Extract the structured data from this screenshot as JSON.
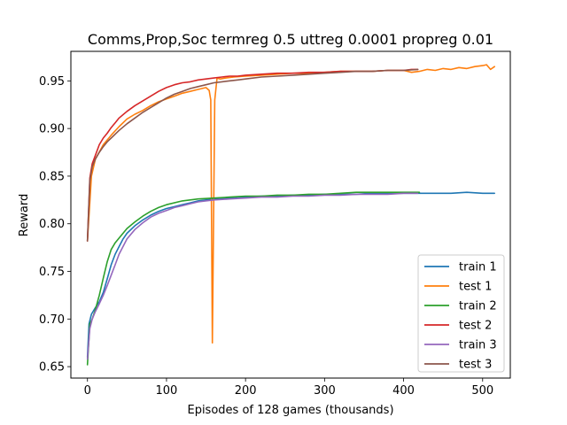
{
  "chart_data": {
    "type": "line",
    "title": "Comms,Prop,Soc termreg 0.5 uttreg 0.0001 propreg 0.01",
    "xlabel": "Episodes of 128 games (thousands)",
    "ylabel": "Reward",
    "xlim": [
      -21,
      535
    ],
    "ylim": [
      0.638,
      0.981
    ],
    "xticks": [
      0,
      100,
      200,
      300,
      400,
      500
    ],
    "yticks": [
      0.65,
      0.7,
      0.75,
      0.8,
      0.85,
      0.9,
      0.95
    ],
    "ytick_labels": [
      "0.65",
      "0.70",
      "0.75",
      "0.80",
      "0.85",
      "0.90",
      "0.95"
    ],
    "grid": false,
    "legend_position": "lower-right",
    "series": [
      {
        "name": "train 1",
        "color": "#1f77b4",
        "x": [
          0,
          2,
          5,
          10,
          15,
          20,
          25,
          30,
          35,
          40,
          45,
          50,
          60,
          70,
          80,
          90,
          100,
          110,
          120,
          130,
          140,
          150,
          160,
          170,
          180,
          190,
          200,
          220,
          240,
          260,
          280,
          300,
          320,
          340,
          360,
          380,
          400,
          420,
          440,
          460,
          480,
          500,
          515
        ],
        "y": [
          0.66,
          0.695,
          0.705,
          0.712,
          0.718,
          0.728,
          0.742,
          0.757,
          0.768,
          0.776,
          0.784,
          0.79,
          0.798,
          0.804,
          0.809,
          0.813,
          0.816,
          0.818,
          0.82,
          0.822,
          0.824,
          0.825,
          0.826,
          0.827,
          0.827,
          0.828,
          0.828,
          0.829,
          0.829,
          0.83,
          0.83,
          0.831,
          0.831,
          0.831,
          0.832,
          0.832,
          0.832,
          0.832,
          0.832,
          0.832,
          0.833,
          0.832,
          0.832
        ]
      },
      {
        "name": "test 1",
        "color": "#ff7f0e",
        "x": [
          0,
          5,
          10,
          20,
          30,
          40,
          50,
          60,
          70,
          80,
          90,
          100,
          110,
          120,
          130,
          140,
          150,
          154,
          156,
          158,
          161,
          164,
          168,
          175,
          185,
          200,
          220,
          240,
          260,
          280,
          300,
          320,
          340,
          360,
          380,
          400,
          410,
          420,
          430,
          440,
          450,
          460,
          470,
          480,
          490,
          500,
          505,
          510,
          515
        ],
        "y": [
          0.782,
          0.85,
          0.868,
          0.883,
          0.893,
          0.902,
          0.91,
          0.915,
          0.919,
          0.924,
          0.928,
          0.931,
          0.934,
          0.937,
          0.939,
          0.941,
          0.943,
          0.94,
          0.93,
          0.675,
          0.93,
          0.953,
          0.952,
          0.953,
          0.954,
          0.955,
          0.956,
          0.957,
          0.958,
          0.958,
          0.959,
          0.96,
          0.96,
          0.96,
          0.961,
          0.961,
          0.959,
          0.96,
          0.962,
          0.961,
          0.963,
          0.962,
          0.964,
          0.963,
          0.965,
          0.966,
          0.967,
          0.962,
          0.965
        ]
      },
      {
        "name": "train 2",
        "color": "#2ca02c",
        "x": [
          0,
          3,
          6,
          10,
          15,
          20,
          25,
          30,
          35,
          40,
          50,
          60,
          70,
          80,
          90,
          100,
          120,
          140,
          160,
          180,
          200,
          220,
          240,
          260,
          280,
          300,
          320,
          340,
          360,
          380,
          400,
          420
        ],
        "y": [
          0.652,
          0.695,
          0.7,
          0.71,
          0.725,
          0.743,
          0.76,
          0.773,
          0.78,
          0.785,
          0.795,
          0.802,
          0.808,
          0.813,
          0.817,
          0.82,
          0.824,
          0.826,
          0.827,
          0.828,
          0.829,
          0.829,
          0.83,
          0.83,
          0.831,
          0.831,
          0.832,
          0.833,
          0.833,
          0.833,
          0.833,
          0.833
        ]
      },
      {
        "name": "test 2",
        "color": "#d62728",
        "x": [
          0,
          3,
          6,
          10,
          15,
          20,
          25,
          30,
          35,
          40,
          50,
          60,
          70,
          80,
          90,
          100,
          110,
          120,
          130,
          140,
          150,
          160,
          170,
          180,
          190,
          200,
          220,
          240,
          260,
          280,
          300,
          320,
          340,
          360,
          380,
          400,
          410,
          418
        ],
        "y": [
          0.782,
          0.848,
          0.863,
          0.872,
          0.883,
          0.89,
          0.895,
          0.901,
          0.906,
          0.911,
          0.918,
          0.924,
          0.929,
          0.934,
          0.939,
          0.943,
          0.946,
          0.948,
          0.949,
          0.951,
          0.952,
          0.953,
          0.954,
          0.955,
          0.955,
          0.956,
          0.957,
          0.958,
          0.958,
          0.959,
          0.959,
          0.96,
          0.96,
          0.96,
          0.961,
          0.961,
          0.962,
          0.962
        ]
      },
      {
        "name": "train 3",
        "color": "#9467bd",
        "x": [
          0,
          3,
          6,
          10,
          15,
          20,
          25,
          30,
          35,
          40,
          50,
          60,
          70,
          80,
          90,
          100,
          110,
          120,
          130,
          140,
          160,
          180,
          200,
          220,
          240,
          260,
          280,
          300,
          320,
          340,
          360,
          380,
          400,
          418
        ],
        "y": [
          0.658,
          0.69,
          0.7,
          0.708,
          0.716,
          0.725,
          0.735,
          0.746,
          0.757,
          0.768,
          0.784,
          0.794,
          0.801,
          0.807,
          0.811,
          0.814,
          0.817,
          0.819,
          0.821,
          0.823,
          0.825,
          0.826,
          0.827,
          0.828,
          0.828,
          0.829,
          0.829,
          0.83,
          0.83,
          0.831,
          0.831,
          0.831,
          0.832,
          0.832
        ]
      },
      {
        "name": "test 3",
        "color": "#8c564b",
        "x": [
          0,
          3,
          6,
          10,
          15,
          20,
          25,
          30,
          35,
          40,
          50,
          60,
          70,
          80,
          90,
          100,
          110,
          120,
          130,
          140,
          150,
          160,
          170,
          180,
          190,
          200,
          220,
          240,
          260,
          280,
          300,
          320,
          340,
          360,
          380,
          400,
          418
        ],
        "y": [
          0.782,
          0.845,
          0.86,
          0.868,
          0.875,
          0.881,
          0.886,
          0.89,
          0.894,
          0.898,
          0.905,
          0.911,
          0.917,
          0.922,
          0.927,
          0.932,
          0.936,
          0.939,
          0.942,
          0.944,
          0.946,
          0.948,
          0.949,
          0.95,
          0.951,
          0.952,
          0.954,
          0.955,
          0.956,
          0.957,
          0.958,
          0.959,
          0.96,
          0.96,
          0.961,
          0.961,
          0.962
        ]
      }
    ]
  }
}
